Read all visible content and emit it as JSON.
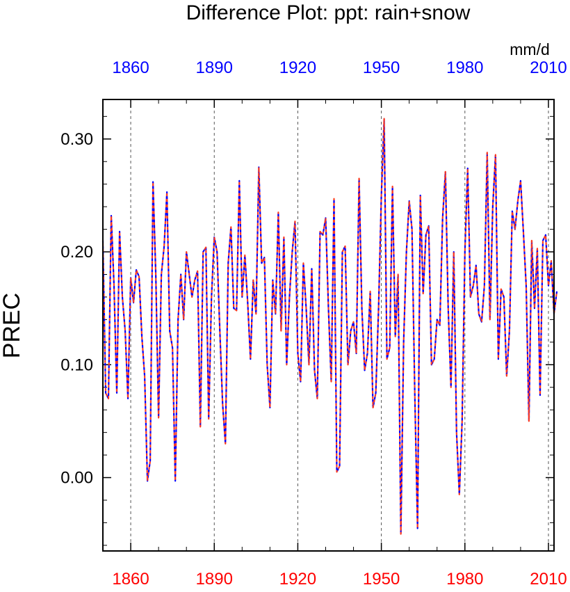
{
  "chart_data": {
    "type": "line",
    "title": "Difference Plot: ppt: rain+snow",
    "units_label": "mm/d",
    "ylabel": "PREC",
    "xlim": [
      1850,
      2012
    ],
    "ylim": [
      -0.065,
      0.335
    ],
    "x_ticks": [
      1860,
      1890,
      1920,
      1950,
      1980,
      2010
    ],
    "x_tick_labels": [
      "1860",
      "1890",
      "1920",
      "1950",
      "1980",
      "2010"
    ],
    "y_ticks": [
      0.0,
      0.1,
      0.2,
      0.3
    ],
    "y_tick_labels": [
      "0.00",
      "0.10",
      "0.20",
      "0.30"
    ],
    "grid": "vertical dashed at x ticks",
    "colors": {
      "top_axis": "#0000ff",
      "bottom_axis": "#ff0000",
      "line_blue": "#0000ff",
      "line_red": "#ff3b1f"
    },
    "x_start": 1850,
    "series": [
      {
        "name": "rain+snow (blue dashed)",
        "color": "#0000ff",
        "values": [
          0.21,
          0.075,
          0.07,
          0.232,
          0.17,
          0.075,
          0.218,
          0.16,
          0.13,
          0.07,
          0.177,
          0.155,
          0.184,
          0.178,
          0.125,
          0.09,
          -0.003,
          0.015,
          0.262,
          0.18,
          0.053,
          0.18,
          0.205,
          0.253,
          0.13,
          0.115,
          -0.003,
          0.14,
          0.18,
          0.14,
          0.2,
          0.18,
          0.16,
          0.175,
          0.183,
          0.045,
          0.2,
          0.204,
          0.052,
          0.16,
          0.213,
          0.2,
          0.13,
          0.065,
          0.03,
          0.19,
          0.222,
          0.15,
          0.148,
          0.263,
          0.16,
          0.197,
          0.155,
          0.105,
          0.175,
          0.145,
          0.275,
          0.19,
          0.195,
          0.1,
          0.062,
          0.175,
          0.145,
          0.235,
          0.13,
          0.213,
          0.1,
          0.16,
          0.2,
          0.227,
          0.11,
          0.085,
          0.19,
          0.15,
          0.1,
          0.185,
          0.095,
          0.07,
          0.218,
          0.215,
          0.23,
          0.15,
          0.085,
          0.247,
          0.005,
          0.01,
          0.2,
          0.205,
          0.1,
          0.13,
          0.138,
          0.11,
          0.265,
          0.15,
          0.095,
          0.11,
          0.165,
          0.062,
          0.075,
          0.15,
          0.25,
          0.318,
          0.105,
          0.115,
          0.258,
          0.125,
          0.18,
          -0.05,
          0.12,
          0.2,
          0.245,
          0.22,
          0.075,
          -0.045,
          0.25,
          0.163,
          0.215,
          0.223,
          0.1,
          0.105,
          0.14,
          0.135,
          0.23,
          0.271,
          0.15,
          0.08,
          0.2,
          0.04,
          -0.015,
          0.05,
          0.2,
          0.274,
          0.16,
          0.17,
          0.188,
          0.145,
          0.138,
          0.17,
          0.288,
          0.14,
          0.24,
          0.286,
          0.105,
          0.167,
          0.16,
          0.09,
          0.13,
          0.236,
          0.22,
          0.245,
          0.263,
          0.218,
          0.17,
          0.05,
          0.21,
          0.15,
          0.203,
          0.073,
          0.21,
          0.215,
          0.17,
          0.192,
          0.145,
          0.165
        ]
      },
      {
        "name": "rain+snow (red dashed)",
        "color": "#ff3b1f",
        "values": [
          0.21,
          0.075,
          0.07,
          0.232,
          0.17,
          0.075,
          0.218,
          0.16,
          0.13,
          0.07,
          0.177,
          0.155,
          0.184,
          0.178,
          0.125,
          0.09,
          -0.003,
          0.015,
          0.262,
          0.18,
          0.053,
          0.18,
          0.205,
          0.253,
          0.13,
          0.115,
          -0.003,
          0.14,
          0.18,
          0.14,
          0.2,
          0.18,
          0.16,
          0.175,
          0.183,
          0.045,
          0.2,
          0.204,
          0.052,
          0.16,
          0.213,
          0.2,
          0.13,
          0.065,
          0.03,
          0.19,
          0.222,
          0.15,
          0.148,
          0.263,
          0.16,
          0.197,
          0.155,
          0.105,
          0.175,
          0.145,
          0.275,
          0.19,
          0.195,
          0.1,
          0.062,
          0.175,
          0.145,
          0.235,
          0.13,
          0.213,
          0.1,
          0.16,
          0.2,
          0.227,
          0.11,
          0.085,
          0.19,
          0.15,
          0.1,
          0.185,
          0.095,
          0.07,
          0.218,
          0.215,
          0.23,
          0.15,
          0.085,
          0.247,
          0.005,
          0.01,
          0.2,
          0.205,
          0.1,
          0.13,
          0.138,
          0.11,
          0.265,
          0.15,
          0.095,
          0.11,
          0.165,
          0.062,
          0.075,
          0.15,
          0.25,
          0.318,
          0.105,
          0.115,
          0.258,
          0.125,
          0.18,
          -0.05,
          0.12,
          0.2,
          0.245,
          0.22,
          0.075,
          -0.045,
          0.25,
          0.163,
          0.215,
          0.223,
          0.1,
          0.105,
          0.14,
          0.135,
          0.23,
          0.271,
          0.15,
          0.08,
          0.2,
          0.04,
          -0.015,
          0.05,
          0.2,
          0.274,
          0.16,
          0.17,
          0.188,
          0.145,
          0.138,
          0.17,
          0.288,
          0.14,
          0.24,
          0.286,
          0.105,
          0.167,
          0.16,
          0.09,
          0.13,
          0.236,
          0.22,
          0.245,
          0.263,
          0.218,
          0.17,
          0.05,
          0.21,
          0.15,
          0.203,
          0.073,
          0.21,
          0.215,
          0.17,
          0.192,
          0.145,
          0.165
        ]
      }
    ]
  }
}
